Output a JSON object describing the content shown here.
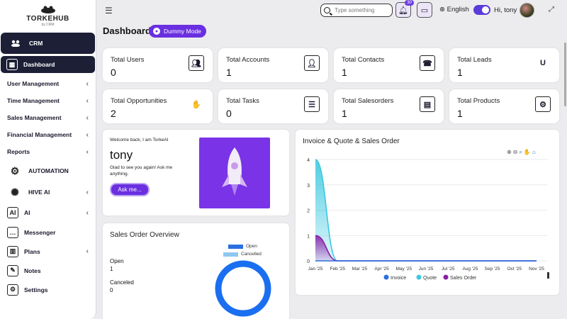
{
  "brand": {
    "name": "TORKEHUB",
    "sub": "by CRM"
  },
  "sidebar": {
    "crm": "CRM",
    "dashboard": "Dashboard",
    "items": [
      {
        "label": "User Management"
      },
      {
        "label": "Time Management"
      },
      {
        "label": "Sales Management"
      },
      {
        "label": "Financial Management"
      },
      {
        "label": "Reports"
      }
    ],
    "automation": "AUTOMATION",
    "hive": "HIVE AI",
    "ai": "AI",
    "messenger": "Messenger",
    "plans": "Plans",
    "notes": "Notes",
    "settings": "Settings"
  },
  "topbar": {
    "search_placeholder": "Type something",
    "notif_count": "30",
    "language": "English",
    "greeting": "Hi, tony"
  },
  "page": {
    "title": "Dashboard",
    "mode": "Dummy Mode"
  },
  "stats": [
    {
      "label": "Total Users",
      "value": "0"
    },
    {
      "label": "Total Accounts",
      "value": "1"
    },
    {
      "label": "Total Contacts",
      "value": "1"
    },
    {
      "label": "Total Leads",
      "value": "1"
    },
    {
      "label": "Total Opportunities",
      "value": "2"
    },
    {
      "label": "Total Tasks",
      "value": "0"
    },
    {
      "label": "Total Salesorders",
      "value": "1"
    },
    {
      "label": "Total Products",
      "value": "1"
    }
  ],
  "welcome": {
    "intro": "Welcome back, I am TorkeAI",
    "name": "tony",
    "message": "Glad to see you again! Ask me anything.",
    "ask": "Ask me..."
  },
  "sales_overview": {
    "title": "Sales Order Overview",
    "rows": [
      {
        "label": "Open",
        "value": "1"
      },
      {
        "label": "Canceled",
        "value": "0"
      }
    ],
    "legend": [
      "Open",
      "Cancelled"
    ]
  },
  "colors": {
    "accent": "#6a2fe0",
    "sidebar_dark": "#1c1f36",
    "invoice": "#2b6fe0",
    "quote": "#3cc8e0",
    "sales_order": "#8a1fa8"
  },
  "chart_data": {
    "type": "area",
    "title": "Invoice & Quote & Sales Order",
    "categories": [
      "Jan '25",
      "Feb '25",
      "Mar '25",
      "Apr '25",
      "May '25",
      "Jun '25",
      "Jul '25",
      "Aug '25",
      "Sep '25",
      "Oct '25",
      "Nov '25"
    ],
    "ylim": [
      0,
      4
    ],
    "yticks": [
      "0",
      "1",
      "2",
      "3",
      "4"
    ],
    "series": [
      {
        "name": "Invoice",
        "values": [
          0,
          0,
          0,
          0,
          0,
          0,
          0,
          0,
          0,
          0,
          0
        ]
      },
      {
        "name": "Quote",
        "values": [
          4,
          0,
          0,
          0,
          0,
          0,
          0,
          0,
          0,
          0,
          0
        ]
      },
      {
        "name": "Sales Order",
        "values": [
          1,
          0,
          0,
          0,
          0,
          0,
          0,
          0,
          0,
          0,
          0
        ]
      }
    ],
    "legend": [
      "Invoice",
      "Quote",
      "Sales Order"
    ]
  }
}
